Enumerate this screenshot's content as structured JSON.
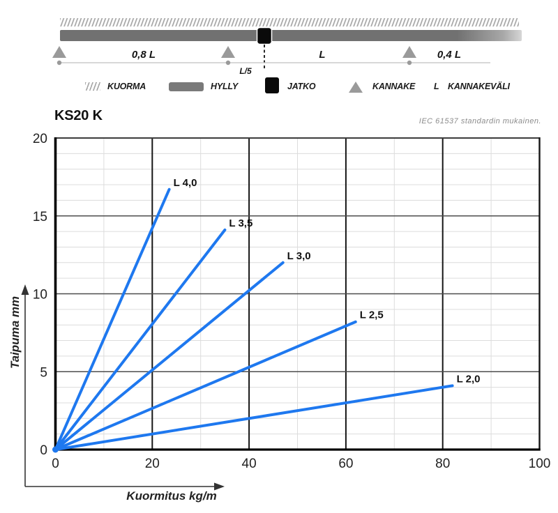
{
  "header": {
    "title": "KS20 K",
    "note": "IEC 61537 standardin mukainen."
  },
  "schematic": {
    "span_labels": [
      "0,8 L",
      "L",
      "0,4 L"
    ],
    "joint_offset_label": "L/5",
    "beam_color": "#717171",
    "support_color": "#9a9a9a",
    "joint_color": "#0a0a0a",
    "hatch_color": "#a6a6a6"
  },
  "legend": {
    "items": [
      {
        "icon": "hatch-icon",
        "label": "KUORMA"
      },
      {
        "icon": "shelf-icon",
        "label": "HYLLY"
      },
      {
        "icon": "joint-icon",
        "label": "JATKO"
      },
      {
        "icon": "support-icon",
        "label": "KANNAKE"
      },
      {
        "icon": "L-symbol",
        "label": "KANNAKEVÄLI"
      }
    ],
    "l_symbol": "L"
  },
  "chart_data": {
    "type": "line",
    "title": "KS20 K",
    "xlabel": "Kuormitus kg/m",
    "ylabel": "Taipuma mm",
    "xlim": [
      0,
      100
    ],
    "ylim": [
      0,
      20
    ],
    "xticks": [
      0,
      20,
      40,
      60,
      80,
      100
    ],
    "yticks": [
      0,
      5,
      10,
      15,
      20
    ],
    "grid": {
      "x_minor_step": 10,
      "y_minor_step": 1,
      "x_major_step": 20,
      "y_major_step": 5
    },
    "legend_position": "inline-end-of-line",
    "line_color": "#1e78ef",
    "series": [
      {
        "name": "L 4,0",
        "points": [
          [
            0,
            0
          ],
          [
            23.5,
            16.7
          ]
        ]
      },
      {
        "name": "L 3,5",
        "points": [
          [
            0,
            0
          ],
          [
            35,
            14.1
          ]
        ]
      },
      {
        "name": "L 3,0",
        "points": [
          [
            0,
            0
          ],
          [
            47,
            12.0
          ]
        ]
      },
      {
        "name": "L 2,5",
        "points": [
          [
            0,
            0
          ],
          [
            62,
            8.2
          ]
        ]
      },
      {
        "name": "L 2,0",
        "points": [
          [
            0,
            0
          ],
          [
            82,
            4.1
          ]
        ]
      }
    ]
  }
}
